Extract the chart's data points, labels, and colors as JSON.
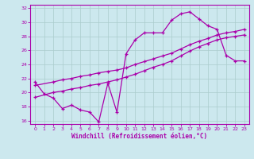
{
  "xlabel": "Windchill (Refroidissement éolien,°C)",
  "xlim": [
    -0.5,
    23.5
  ],
  "ylim": [
    15.5,
    32.5
  ],
  "xticks": [
    0,
    1,
    2,
    3,
    4,
    5,
    6,
    7,
    8,
    9,
    10,
    11,
    12,
    13,
    14,
    15,
    16,
    17,
    18,
    19,
    20,
    21,
    22,
    23
  ],
  "yticks": [
    16,
    18,
    20,
    22,
    24,
    26,
    28,
    30,
    32
  ],
  "bg_color": "#cce8ee",
  "grid_color": "#aacccc",
  "line_color": "#aa00aa",
  "line1_x": [
    0,
    1,
    2,
    3,
    4,
    5,
    6,
    7,
    8,
    9,
    10,
    11,
    12,
    13,
    14,
    15,
    16,
    17,
    18,
    19,
    20,
    21,
    22,
    23
  ],
  "line1_y": [
    21.5,
    19.8,
    19.2,
    17.7,
    18.2,
    17.5,
    17.2,
    15.8,
    21.3,
    17.2,
    25.5,
    27.5,
    28.5,
    28.5,
    28.5,
    30.3,
    31.2,
    31.5,
    30.5,
    29.5,
    29.0,
    25.3,
    24.5,
    24.5
  ],
  "line2_x": [
    0,
    2,
    3,
    4,
    5,
    6,
    7,
    8,
    9,
    10,
    11,
    12,
    13,
    14,
    15,
    16,
    17,
    18,
    19,
    20,
    21,
    22,
    23
  ],
  "line2_y": [
    21.0,
    21.5,
    21.8,
    22.0,
    22.3,
    22.5,
    22.8,
    23.0,
    23.2,
    23.5,
    24.0,
    24.4,
    24.8,
    25.2,
    25.6,
    26.2,
    26.8,
    27.3,
    27.7,
    28.2,
    28.5,
    28.7,
    29.0
  ],
  "line3_x": [
    0,
    2,
    3,
    4,
    5,
    6,
    7,
    8,
    9,
    10,
    11,
    12,
    13,
    14,
    15,
    16,
    17,
    18,
    19,
    20,
    21,
    22,
    23
  ],
  "line3_y": [
    19.3,
    20.0,
    20.2,
    20.5,
    20.7,
    21.0,
    21.2,
    21.5,
    21.8,
    22.2,
    22.6,
    23.1,
    23.6,
    24.0,
    24.5,
    25.2,
    25.9,
    26.5,
    27.0,
    27.5,
    27.8,
    28.0,
    28.2
  ]
}
